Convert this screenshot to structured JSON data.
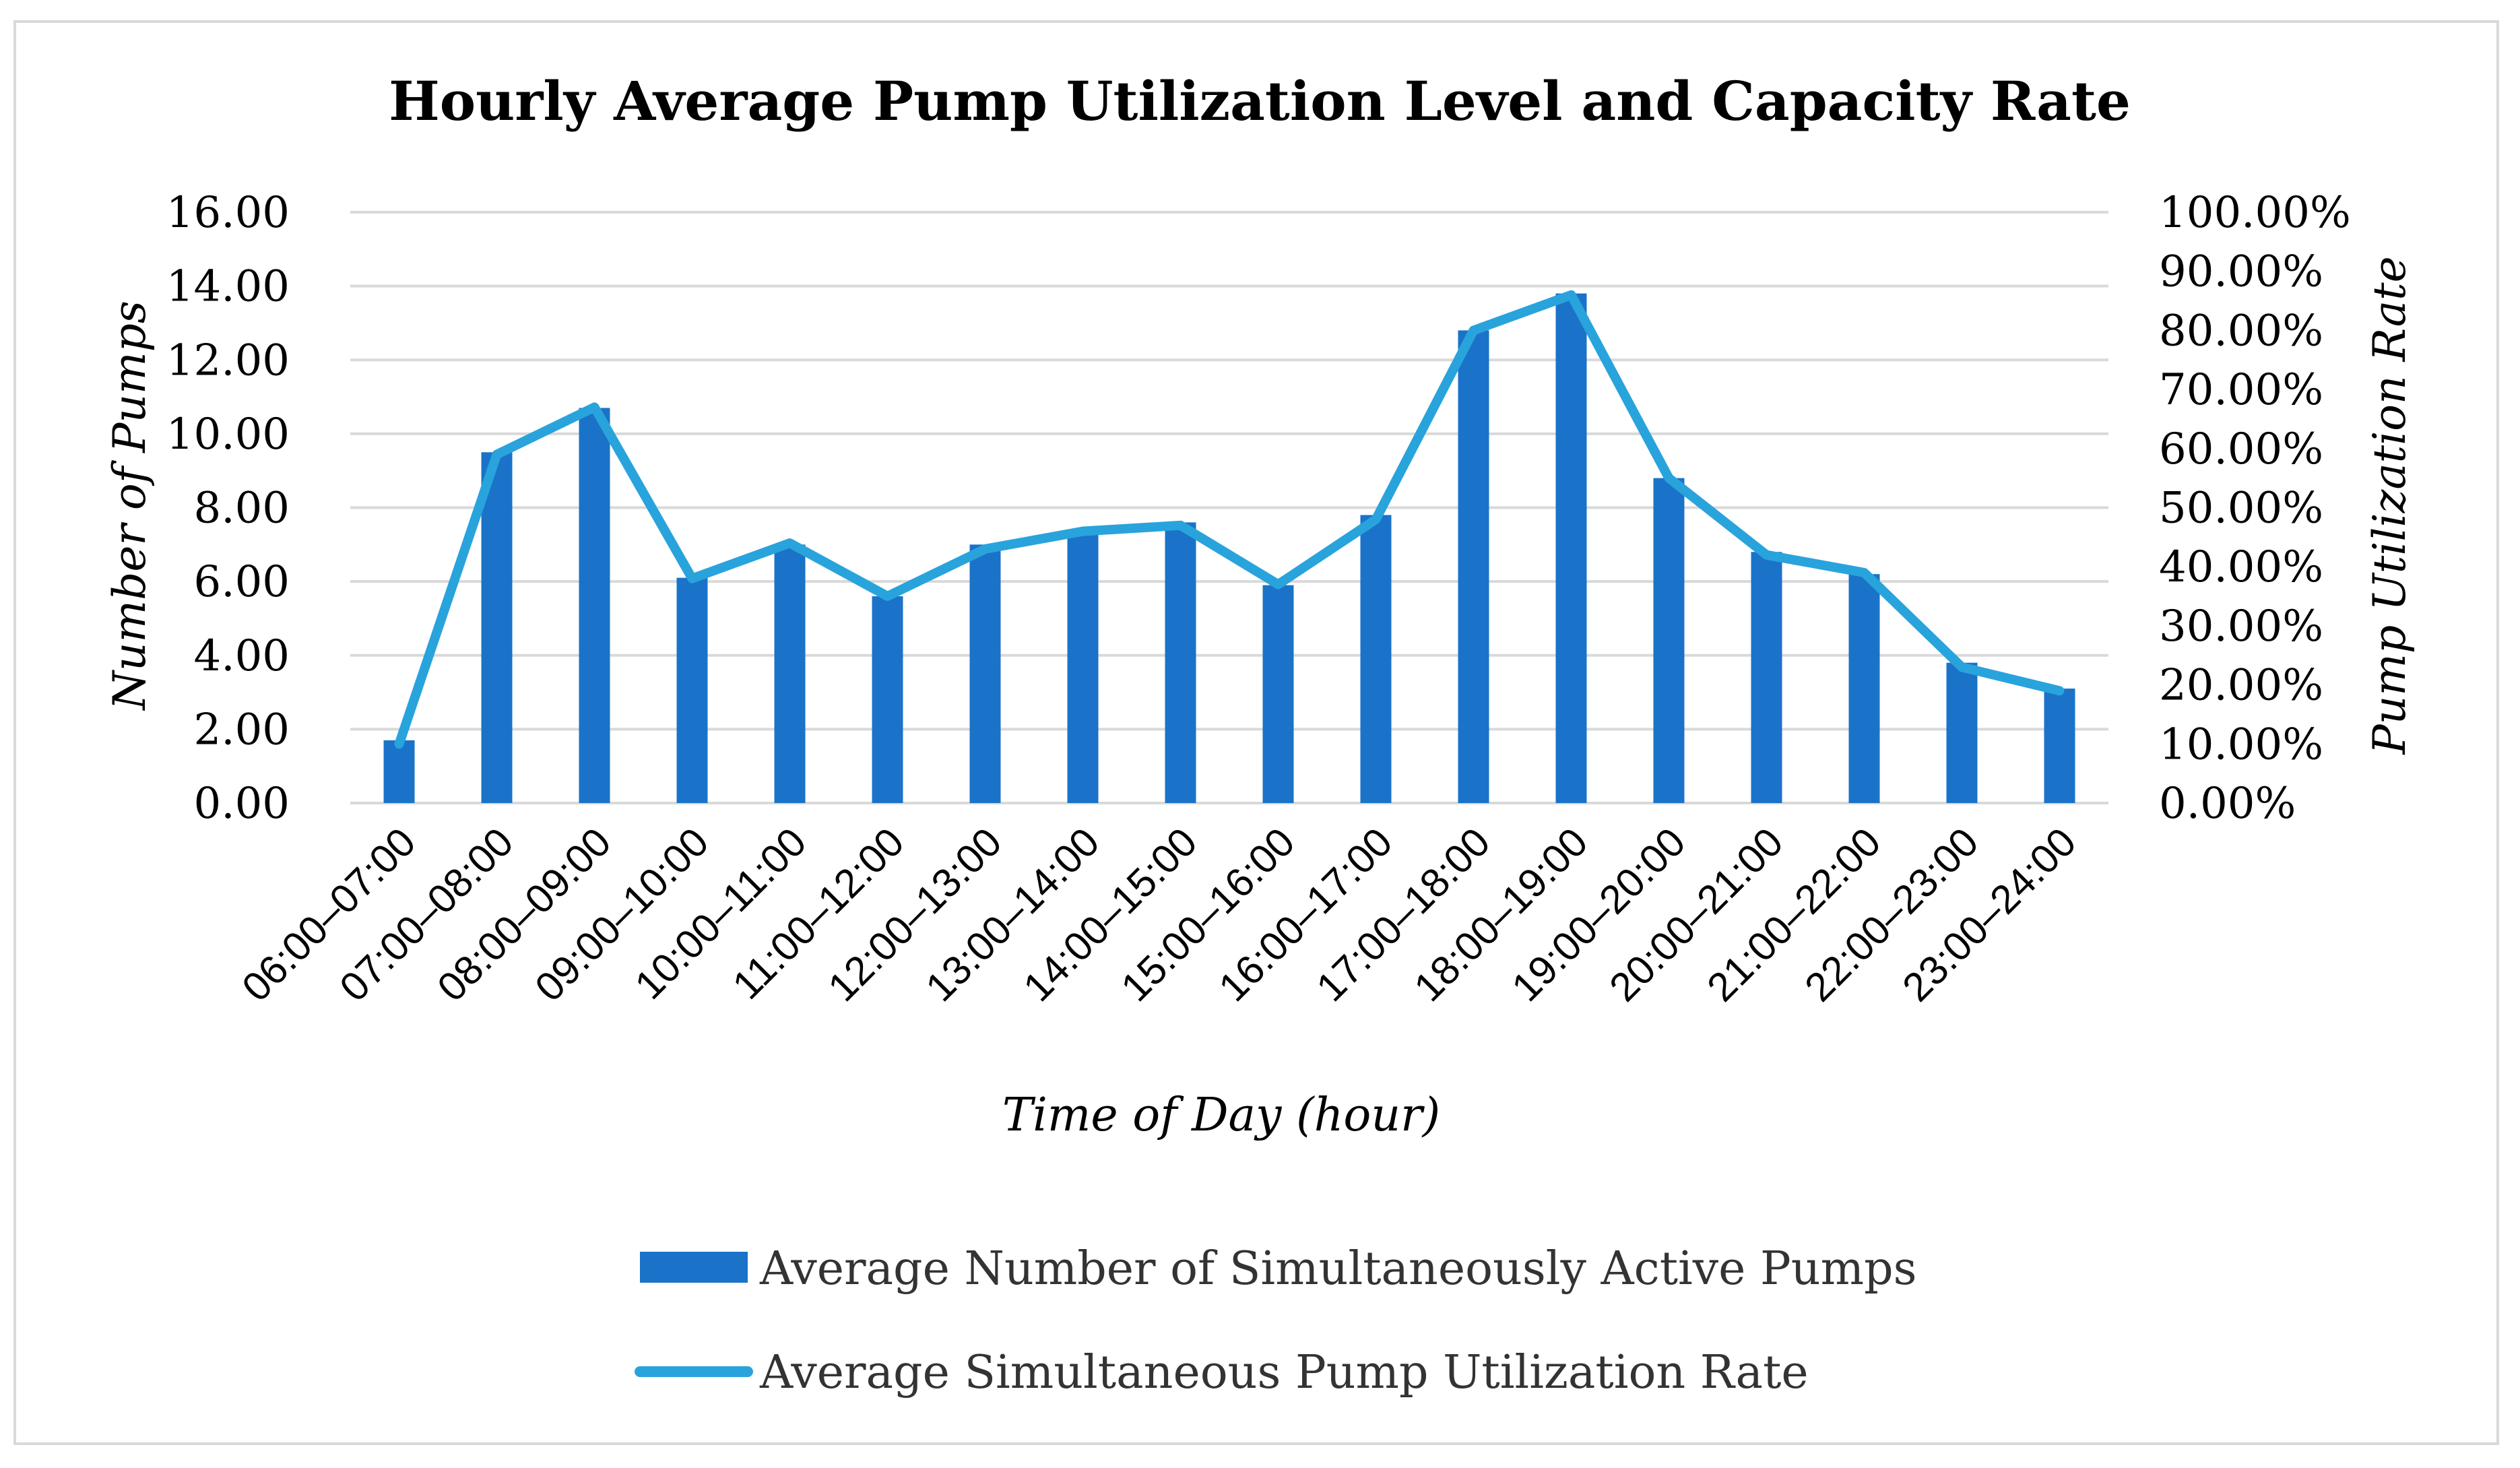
{
  "chart_data": {
    "type": "bar",
    "title": "Hourly Average Pump Utilization Level and Capacity Rate",
    "xlabel": "Time of Day (hour)",
    "ylabel": "Number of Pumps",
    "y2label": "Pump Utilization Rate",
    "ylim": [
      0,
      16
    ],
    "y2lim": [
      0,
      1
    ],
    "yticks": [
      "0.00",
      "2.00",
      "4.00",
      "6.00",
      "8.00",
      "10.00",
      "12.00",
      "14.00",
      "16.00"
    ],
    "y2ticks": [
      "0.00%",
      "10.00%",
      "20.00%",
      "30.00%",
      "40.00%",
      "50.00%",
      "60.00%",
      "70.00%",
      "80.00%",
      "90.00%",
      "100.00%"
    ],
    "grid": true,
    "legend_position": "bottom",
    "categories": [
      "06:00–07:00",
      "07:00–08:00",
      "08:00–09:00",
      "09:00–10:00",
      "10:00–11:00",
      "11:00–12:00",
      "12:00–13:00",
      "13:00–14:00",
      "14:00–15:00",
      "15:00–16:00",
      "16:00–17:00",
      "17:00–18:00",
      "18:00–19:00",
      "19:00–20:00",
      "20:00–21:00",
      "21:00–22:00",
      "22:00–23:00",
      "23:00–24:00"
    ],
    "series": [
      {
        "name": "Average Number of Simultaneously Active Pumps",
        "type": "bar",
        "axis": "left",
        "color": "#1a73c8",
        "values": [
          1.7,
          9.5,
          10.7,
          6.1,
          7.0,
          5.6,
          7.0,
          7.4,
          7.6,
          5.9,
          7.8,
          12.8,
          13.8,
          8.8,
          6.8,
          6.2,
          3.8,
          3.1
        ]
      },
      {
        "name": "Average Simultaneous Pump Utilization Rate",
        "type": "line",
        "axis": "right",
        "color": "#29a3dc",
        "values": [
          0.1,
          0.59,
          0.67,
          0.38,
          0.44,
          0.35,
          0.43,
          0.46,
          0.47,
          0.37,
          0.48,
          0.8,
          0.86,
          0.55,
          0.42,
          0.39,
          0.23,
          0.19
        ]
      }
    ]
  }
}
